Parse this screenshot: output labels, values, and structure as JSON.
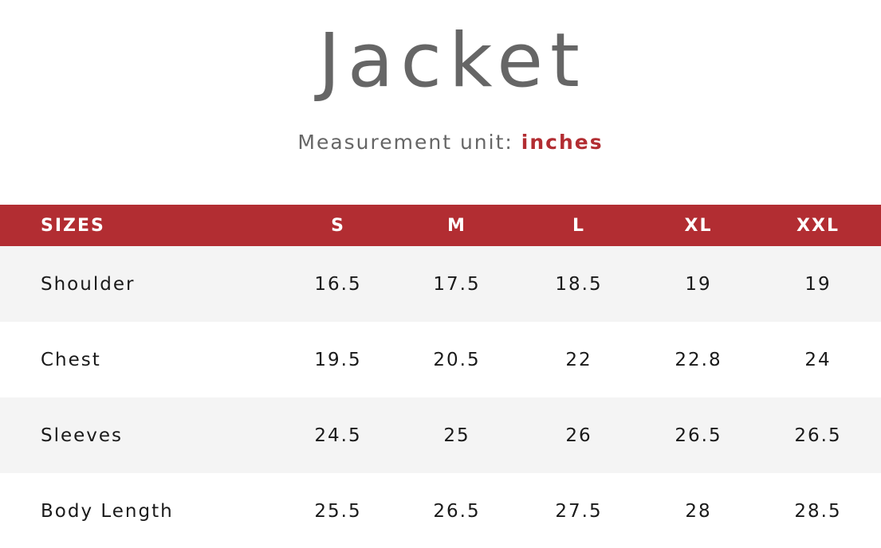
{
  "title": "Jacket",
  "subtitle": {
    "prefix": "Measurement unit:",
    "unit": "inches"
  },
  "colors": {
    "accent": "#b22d32",
    "title_text": "#666666",
    "row_alt": "#f4f4f4"
  },
  "table": {
    "headers": [
      "SIZES",
      "S",
      "M",
      "L",
      "XL",
      "XXL"
    ],
    "rows": [
      {
        "label": "Shoulder",
        "values": [
          "16.5",
          "17.5",
          "18.5",
          "19",
          "19"
        ]
      },
      {
        "label": "Chest",
        "values": [
          "19.5",
          "20.5",
          "22",
          "22.8",
          "24"
        ]
      },
      {
        "label": "Sleeves",
        "values": [
          "24.5",
          "25",
          "26",
          "26.5",
          "26.5"
        ]
      },
      {
        "label": "Body Length",
        "values": [
          "25.5",
          "26.5",
          "27.5",
          "28",
          "28.5"
        ]
      }
    ]
  }
}
